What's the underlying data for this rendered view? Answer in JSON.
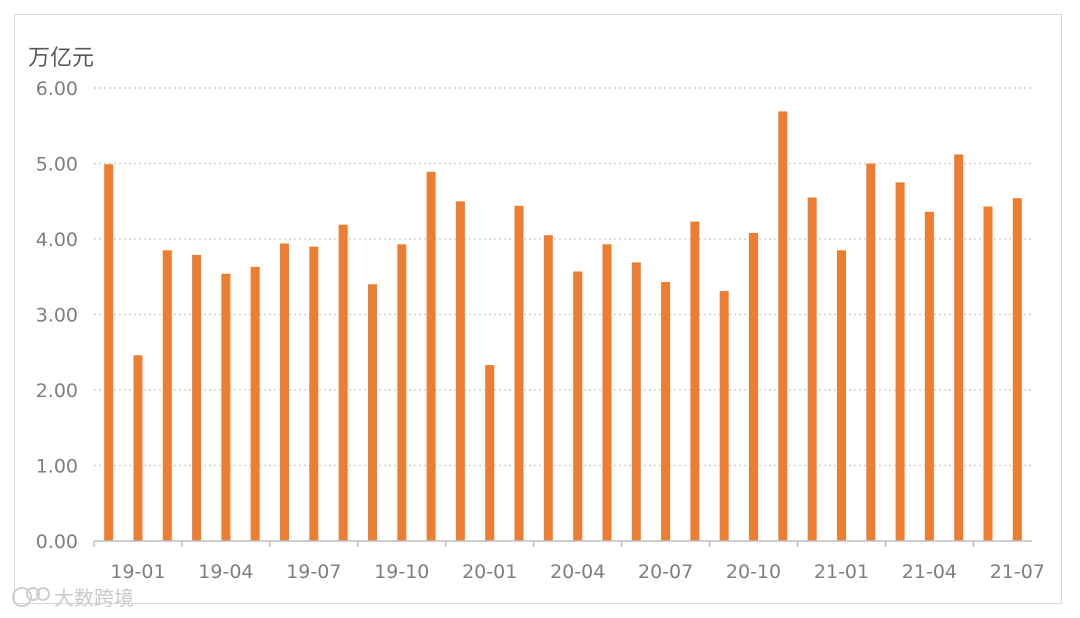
{
  "chart_data": {
    "type": "bar",
    "unit_label": "万亿元",
    "ylim": [
      0,
      6
    ],
    "yticks": [
      "0.00",
      "1.00",
      "2.00",
      "3.00",
      "4.00",
      "5.00",
      "6.00"
    ],
    "grid": true,
    "bar_color": "#ED7D31",
    "categories": [
      "19-01",
      "19-02",
      "19-03",
      "19-04",
      "19-05",
      "19-06",
      "19-07",
      "19-08",
      "19-09",
      "19-10",
      "19-11",
      "19-12",
      "20-01",
      "20-02",
      "20-03",
      "20-04",
      "20-05",
      "20-06",
      "20-07",
      "20-08",
      "20-09",
      "20-10",
      "20-11",
      "20-12",
      "21-01",
      "21-02",
      "21-03",
      "21-04",
      "21-05",
      "21-06",
      "21-07",
      "21-08"
    ],
    "values": [
      4.99,
      2.46,
      3.85,
      3.79,
      3.54,
      3.63,
      3.94,
      3.9,
      4.19,
      3.4,
      3.93,
      4.89,
      4.5,
      2.33,
      4.44,
      4.05,
      3.57,
      3.93,
      3.69,
      3.43,
      4.23,
      3.31,
      4.08,
      5.69,
      4.55,
      3.85,
      5.0,
      4.75,
      4.36,
      5.12,
      4.43,
      4.54
    ],
    "xtick_labels": [
      "19-01",
      "19-04",
      "19-07",
      "19-10",
      "20-01",
      "20-04",
      "20-07",
      "20-10",
      "21-01",
      "21-04",
      "21-07"
    ]
  },
  "watermark": "大数跨境"
}
